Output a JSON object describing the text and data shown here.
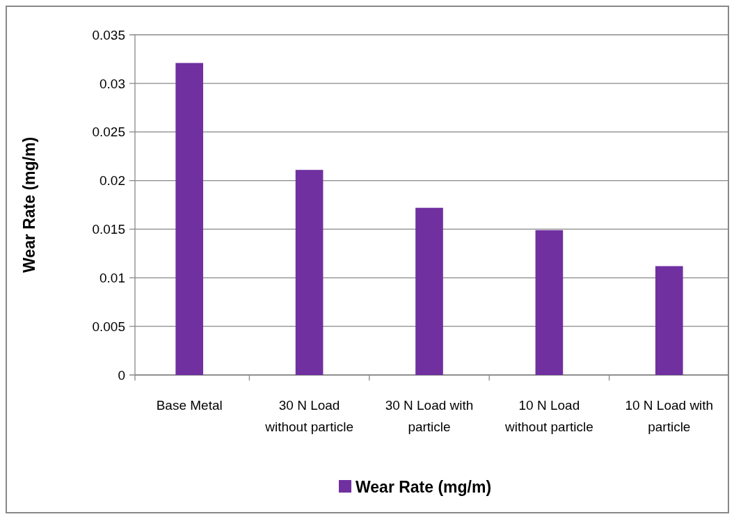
{
  "chart_data": {
    "type": "bar",
    "ylabel": "Wear Rate (mg/m)",
    "categories": [
      "Base Metal",
      "30 N Load without particle",
      "30 N Load with particle",
      "10 N Load without particle",
      "10 N Load with particle"
    ],
    "series": [
      {
        "name": "Wear Rate (mg/m)",
        "color": "#7030a0",
        "values": [
          0.0321,
          0.0211,
          0.0172,
          0.0149,
          0.0112
        ]
      }
    ],
    "ylim": [
      0,
      0.035
    ],
    "yticks": [
      0,
      0.005,
      0.01,
      0.015,
      0.02,
      0.025,
      0.03,
      0.035
    ],
    "grid": "y",
    "legend": "bottom"
  }
}
